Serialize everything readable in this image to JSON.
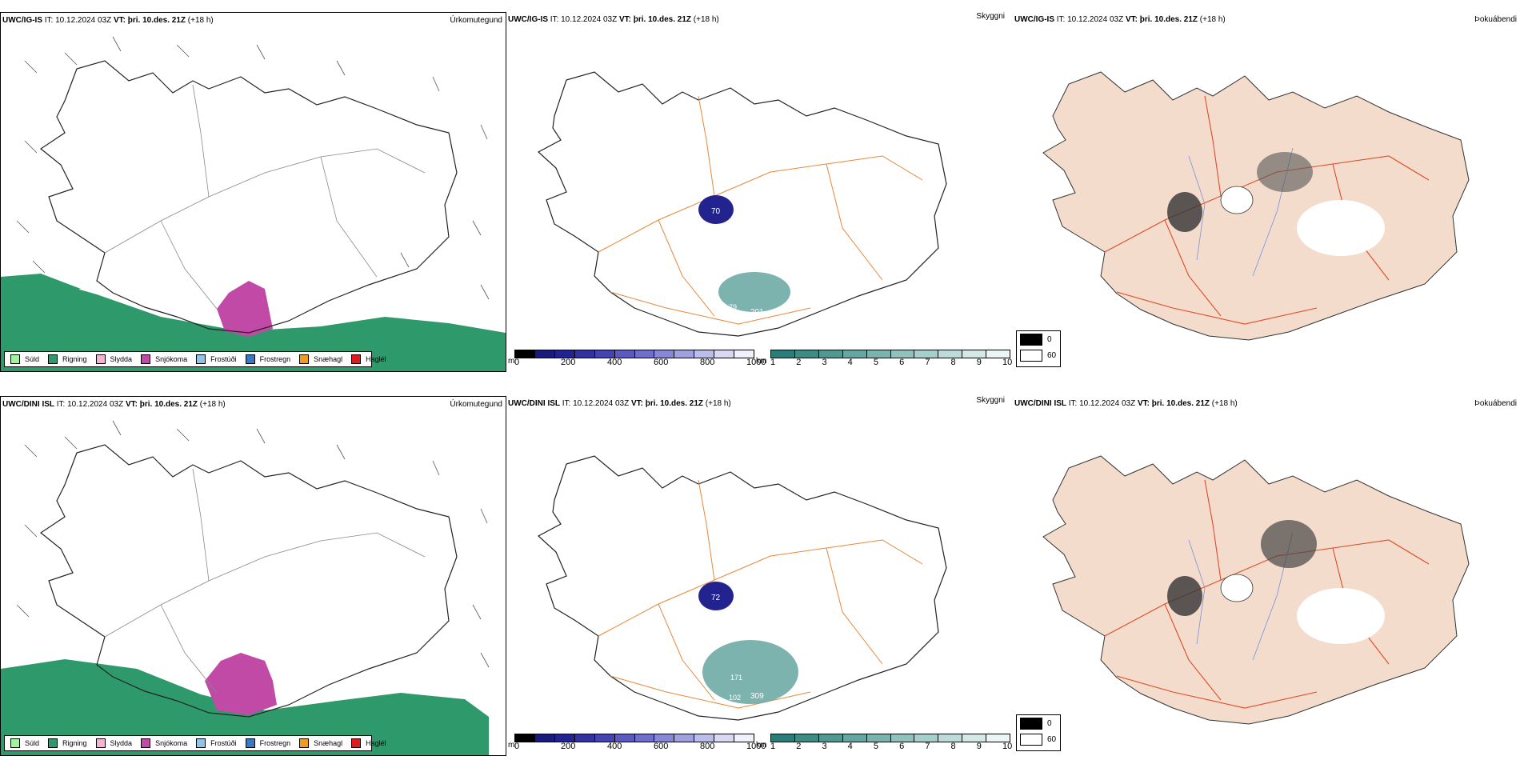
{
  "rows": [
    {
      "model": "UWC/IG-IS",
      "it_label": "IT:",
      "it_value": "10.12.2024 03Z",
      "vt_label": "VT:",
      "vt_value": "þri. 10.des. 21Z",
      "lead": "(+18 h)",
      "precip_title": "Úrkomutegund",
      "vis_title": "Skyggni",
      "fog_title": "Þokuábendi",
      "ceiling_label_70": "70",
      "ceiling_label_201": "201",
      "ceiling_label_79": "79"
    },
    {
      "model": "UWC/DINI ISL",
      "it_label": "IT:",
      "it_value": "10.12.2024 03Z",
      "vt_label": "VT:",
      "vt_value": "þri. 10.des. 21Z",
      "lead": "(+18 h)",
      "precip_title": "Úrkomutegund",
      "vis_title": "Skyggni",
      "fog_title": "Þokuábendi",
      "ceiling_label_70": "72",
      "ceiling_label_201": "309",
      "ceiling_label_79": "102",
      "ceiling_label_171": "171"
    }
  ],
  "precip_legend": [
    {
      "label": "Súld",
      "color": "#9ef59e"
    },
    {
      "label": "Rigning",
      "color": "#2e9a6b"
    },
    {
      "label": "Slydda",
      "color": "#f5b3d3"
    },
    {
      "label": "Snjókoma",
      "color": "#c04aa6"
    },
    {
      "label": "Frostúði",
      "color": "#8fc3ea"
    },
    {
      "label": "Frostregn",
      "color": "#3b78c2"
    },
    {
      "label": "Snæhagl",
      "color": "#ef9a22"
    },
    {
      "label": "Haglél",
      "color": "#e01b1b"
    }
  ],
  "ceiling_bar": {
    "unit": "m",
    "ticks": [
      "0",
      "200",
      "400",
      "600",
      "800",
      "1000"
    ],
    "colors": [
      "#000000",
      "#1a1a7a",
      "#23238f",
      "#3232a0",
      "#4444b0",
      "#5a5abf",
      "#6f6fc9",
      "#8787d3",
      "#a0a0de",
      "#bcbce9",
      "#d8d8f2",
      "#f0f0fa"
    ]
  },
  "vis_bar": {
    "unit": "km",
    "ticks": [
      "1",
      "2",
      "3",
      "4",
      "5",
      "6",
      "7",
      "8",
      "9",
      "10"
    ],
    "colors": [
      "#2a7d78",
      "#3e8a85",
      "#519893",
      "#66a6a1",
      "#7bb4af",
      "#90c1bd",
      "#a6cfcb",
      "#bcdcd9",
      "#d2e9e7",
      "#eaf5f4"
    ]
  },
  "fog_legend": [
    {
      "label": "0",
      "color": "#000000"
    },
    {
      "label": "60",
      "color": "#ffffff"
    }
  ]
}
